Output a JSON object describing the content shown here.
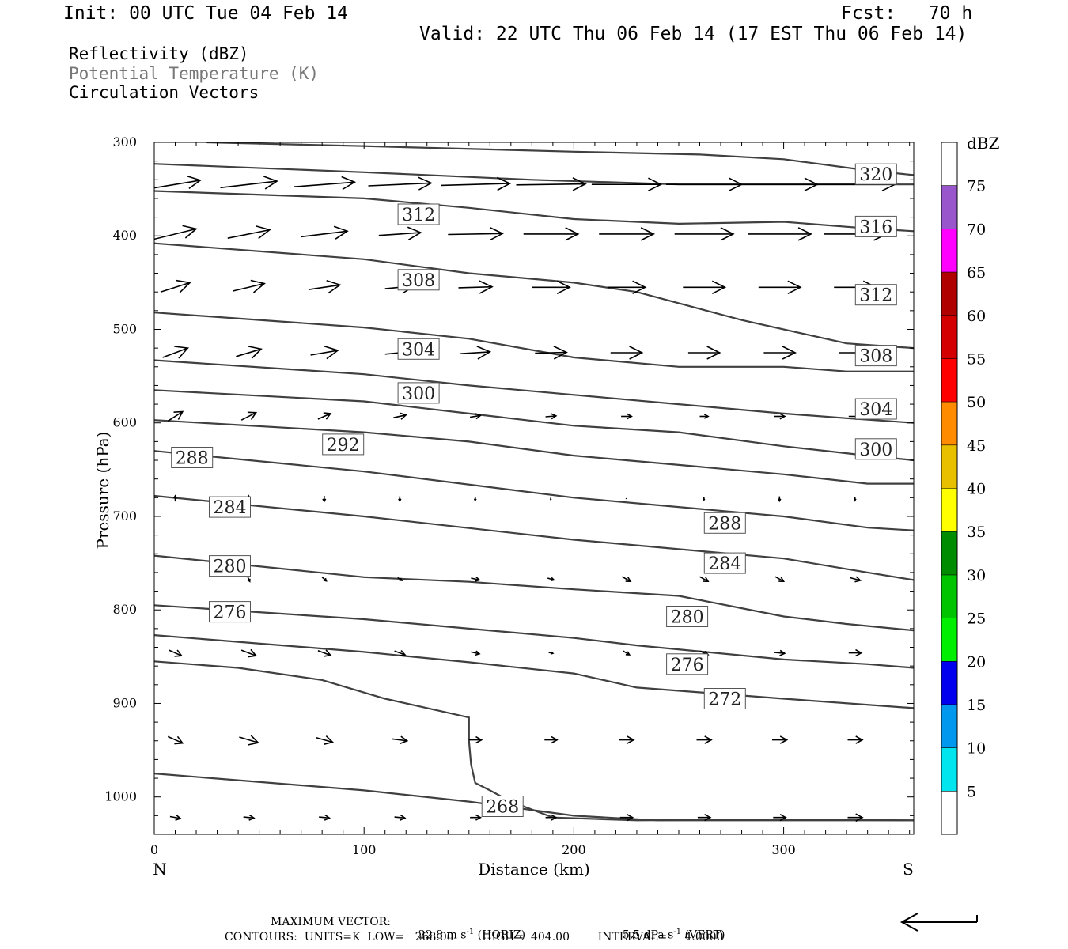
{
  "header": {
    "init": "Init: 00 UTC Tue 04 Feb 14",
    "fcst": "Fcst:   70 h",
    "valid": "Valid: 22 UTC Thu 06 Feb 14 (17 EST Thu 06 Feb 14)"
  },
  "legend": {
    "reflectivity": "Reflectivity (dBZ)",
    "theta": "Potential Temperature (K)",
    "vectors": "Circulation Vectors"
  },
  "footer": {
    "max_vector_label": "MAXIMUM VECTOR:",
    "max_horiz": "22.8 m s",
    "horiz_tag": "(HORIZ)",
    "max_vert": "5.5 dPa s",
    "vert_tag": "(VERT)",
    "exp": "-1",
    "contours": "CONTOURS:  UNITS=K  LOW=   268.00        HIGH=  404.00        INTERVAL=     4.0000"
  },
  "colorbar": {
    "unit": "dBZ",
    "levels": [
      "5",
      "10",
      "15",
      "20",
      "25",
      "30",
      "35",
      "40",
      "45",
      "50",
      "55",
      "60",
      "65",
      "70",
      "75"
    ],
    "colors": [
      "#ffffff",
      "#00e5ee",
      "#0097ee",
      "#0000ee",
      "#00ee00",
      "#00c400",
      "#008c00",
      "#ffff00",
      "#e8c000",
      "#ff8c00",
      "#ff0000",
      "#d40000",
      "#b00000",
      "#ff00ff",
      "#9955cc",
      "#ffffff"
    ]
  },
  "chart_data": {
    "type": "line",
    "title": "",
    "xlabel": "Distance (km)",
    "ylabel": "Pressure (hPa)",
    "xlim": [
      0,
      362
    ],
    "ylim": [
      300,
      1040
    ],
    "y_reversed": true,
    "x_ticks": [
      0,
      100,
      200,
      300
    ],
    "y_ticks": [
      300,
      400,
      500,
      600,
      700,
      800,
      900,
      1000
    ],
    "x_end_labels": {
      "left": "N",
      "right": "S"
    },
    "grid": false,
    "contour_line_color": "#404040",
    "isentropes": [
      {
        "level": "320",
        "x": [
          25,
          100,
          200,
          260,
          300,
          340,
          362
        ],
        "y": [
          300,
          304,
          310,
          313,
          318,
          330,
          335
        ]
      },
      {
        "level": null,
        "x": [
          0,
          100,
          180,
          250,
          300,
          340,
          362
        ],
        "y": [
          323,
          332,
          340,
          345,
          345,
          345,
          345
        ]
      },
      {
        "level": "316",
        "x": [
          0,
          100,
          150,
          200,
          250,
          300,
          340,
          362
        ],
        "y": [
          352,
          360,
          370,
          382,
          387,
          385,
          392,
          395
        ]
      },
      {
        "level": "312",
        "x": [
          0,
          100,
          150,
          200,
          230,
          280,
          330,
          362
        ],
        "y": [
          408,
          425,
          440,
          450,
          460,
          490,
          515,
          520
        ]
      },
      {
        "level": "308",
        "x": [
          0,
          100,
          150,
          200,
          250,
          300,
          330,
          362
        ],
        "y": [
          482,
          498,
          510,
          530,
          540,
          540,
          545,
          545
        ]
      },
      {
        "level": "304",
        "x": [
          0,
          100,
          150,
          200,
          250,
          300,
          330,
          362
        ],
        "y": [
          533,
          548,
          560,
          570,
          580,
          590,
          595,
          600
        ]
      },
      {
        "level": "300",
        "x": [
          0,
          100,
          150,
          200,
          250,
          300,
          340,
          362
        ],
        "y": [
          565,
          577,
          590,
          603,
          610,
          625,
          635,
          640
        ]
      },
      {
        "level": "292",
        "x": [
          0,
          100,
          150,
          200,
          250,
          300,
          340,
          362
        ],
        "y": [
          597,
          610,
          620,
          635,
          645,
          655,
          665,
          665
        ]
      },
      {
        "level": "288",
        "x": [
          0,
          100,
          200,
          300,
          340,
          362
        ],
        "y": [
          630,
          652,
          680,
          700,
          712,
          715
        ]
      },
      {
        "level": "284",
        "x": [
          0,
          100,
          200,
          300,
          340,
          362
        ],
        "y": [
          678,
          700,
          725,
          745,
          760,
          768
        ]
      },
      {
        "level": "280",
        "x": [
          0,
          100,
          150,
          200,
          250,
          300,
          330,
          362
        ],
        "y": [
          742,
          765,
          770,
          778,
          785,
          807,
          815,
          822
        ]
      },
      {
        "level": "276",
        "x": [
          0,
          100,
          150,
          200,
          230,
          300,
          340,
          362
        ],
        "y": [
          795,
          810,
          820,
          830,
          838,
          853,
          858,
          862
        ]
      },
      {
        "level": "272",
        "x": [
          0,
          100,
          150,
          200,
          230,
          300,
          362
        ],
        "y": [
          827,
          845,
          856,
          868,
          883,
          895,
          905
        ]
      },
      {
        "level": "268",
        "x": [
          0,
          40,
          80,
          110,
          150,
          150,
          151,
          153,
          160,
          170,
          190,
          230,
          300,
          362
        ],
        "y": [
          855,
          862,
          875,
          895,
          915,
          940,
          965,
          985,
          993,
          1005,
          1022,
          1025,
          1024,
          1025
        ]
      },
      {
        "level": null,
        "x": [
          0,
          100,
          150,
          200,
          240,
          300,
          362
        ],
        "y": [
          975,
          993,
          1005,
          1020,
          1025,
          1025,
          1025
        ]
      }
    ],
    "contour_labels": [
      {
        "level": "320",
        "x": 344,
        "y": 334
      },
      {
        "level": "316",
        "x": 344,
        "y": 390
      },
      {
        "level": "312",
        "x": 126,
        "y": 377
      },
      {
        "level": "312",
        "x": 344,
        "y": 463
      },
      {
        "level": "308",
        "x": 126,
        "y": 447
      },
      {
        "level": "308",
        "x": 344,
        "y": 528
      },
      {
        "level": "304",
        "x": 126,
        "y": 521
      },
      {
        "level": "304",
        "x": 344,
        "y": 585
      },
      {
        "level": "300",
        "x": 126,
        "y": 568
      },
      {
        "level": "300",
        "x": 344,
        "y": 628
      },
      {
        "level": "292",
        "x": 90,
        "y": 623
      },
      {
        "level": "288",
        "x": 18,
        "y": 637
      },
      {
        "level": "288",
        "x": 272,
        "y": 707
      },
      {
        "level": "284",
        "x": 36,
        "y": 690
      },
      {
        "level": "284",
        "x": 272,
        "y": 750
      },
      {
        "level": "280",
        "x": 36,
        "y": 753
      },
      {
        "level": "280",
        "x": 254,
        "y": 807
      },
      {
        "level": "276",
        "x": 36,
        "y": 802
      },
      {
        "level": "276",
        "x": 254,
        "y": 858
      },
      {
        "level": "272",
        "x": 272,
        "y": 895
      },
      {
        "level": "268",
        "x": 166,
        "y": 1010
      }
    ],
    "vector_levels_hPa": [
      345,
      398,
      455,
      525,
      593,
      681,
      767,
      846,
      939,
      1022
    ],
    "vector_x_km": [
      10,
      45,
      81,
      117,
      153,
      189,
      225,
      262,
      298,
      334
    ],
    "vectors_u_km": [
      [
        24,
        27,
        29,
        30,
        33,
        33,
        33,
        36,
        36,
        38
      ],
      [
        20,
        20,
        22,
        20,
        26,
        26,
        26,
        28,
        30,
        30
      ],
      [
        14,
        15,
        15,
        14,
        16,
        18,
        18,
        20,
        20,
        20
      ],
      [
        12,
        12,
        13,
        14,
        14,
        15,
        15,
        15,
        15,
        15
      ],
      [
        7,
        7,
        6,
        6,
        5,
        5,
        5,
        4,
        5,
        6
      ],
      [
        0,
        0,
        0,
        0,
        0,
        0,
        0,
        0,
        0,
        0
      ],
      [
        0,
        1,
        2,
        2,
        4,
        3,
        4,
        4,
        4,
        5
      ],
      [
        6,
        7,
        6,
        5,
        4,
        2,
        3,
        4,
        5,
        6
      ],
      [
        7,
        9,
        8,
        7,
        6,
        6,
        7,
        7,
        7,
        7
      ],
      [
        5,
        5,
        5,
        5,
        5,
        5,
        6,
        6,
        6,
        7
      ]
    ],
    "vectors_v_hPa": [
      [
        -9,
        -7,
        -5,
        -3,
        -2,
        -1,
        0,
        0,
        0,
        0
      ],
      [
        -11,
        -9,
        -6,
        -3,
        -1,
        0,
        0,
        0,
        0,
        0
      ],
      [
        -10,
        -8,
        -5,
        -3,
        -1,
        0,
        0,
        0,
        0,
        0
      ],
      [
        -10,
        -8,
        -5,
        -3,
        -2,
        -1,
        0,
        0,
        0,
        0
      ],
      [
        -10,
        -8,
        -6,
        -3,
        -2,
        -1,
        0,
        0,
        0,
        0
      ],
      [
        -6,
        -6,
        6,
        5,
        4,
        2,
        1,
        3,
        5,
        4
      ],
      [
        0,
        5,
        4,
        3,
        2,
        2,
        5,
        5,
        5,
        3
      ],
      [
        6,
        6,
        5,
        4,
        2,
        1,
        4,
        4,
        1,
        0
      ],
      [
        7,
        6,
        5,
        2,
        0,
        0,
        0,
        0,
        0,
        0
      ],
      [
        2,
        1,
        1,
        1,
        0,
        0,
        0,
        0,
        0,
        0
      ]
    ],
    "reference_vector_direction": "left"
  }
}
